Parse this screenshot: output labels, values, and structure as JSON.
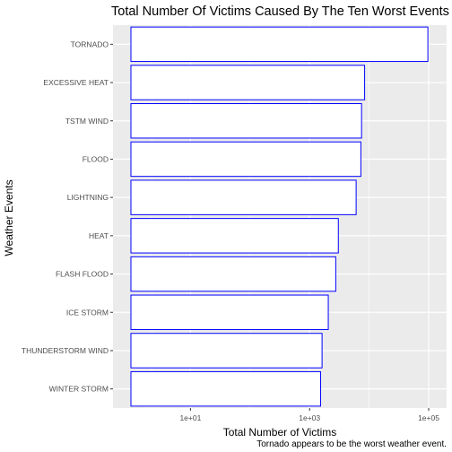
{
  "chart_data": {
    "type": "bar",
    "orientation": "horizontal",
    "title": "Total Number Of Victims Caused By The Ten Worst Events",
    "xlabel": "Total Number of Victims",
    "ylabel": "Weather Events",
    "caption": "Tornado appears to be the worst weather event.",
    "x_scale": "log10",
    "xlim": [
      0.5,
      200000
    ],
    "x_ticks": [
      10,
      1000,
      100000
    ],
    "x_tick_labels": [
      "1e+01",
      "1e+03",
      "1e+05"
    ],
    "grid": true,
    "categories": [
      "TORNADO",
      "EXCESSIVE HEAT",
      "TSTM WIND",
      "FLOOD",
      "LIGHTNING",
      "HEAT",
      "FLASH FLOOD",
      "ICE STORM",
      "THUNDERSTORM WIND",
      "WINTER STORM"
    ],
    "values": [
      97000,
      8400,
      7460,
      7260,
      6050,
      3040,
      2750,
      2060,
      1620,
      1530
    ],
    "bar_fill": "#ffffff",
    "bar_outline": "#0000ff",
    "panel_background": "#ebebeb",
    "grid_color": "#ffffff"
  }
}
